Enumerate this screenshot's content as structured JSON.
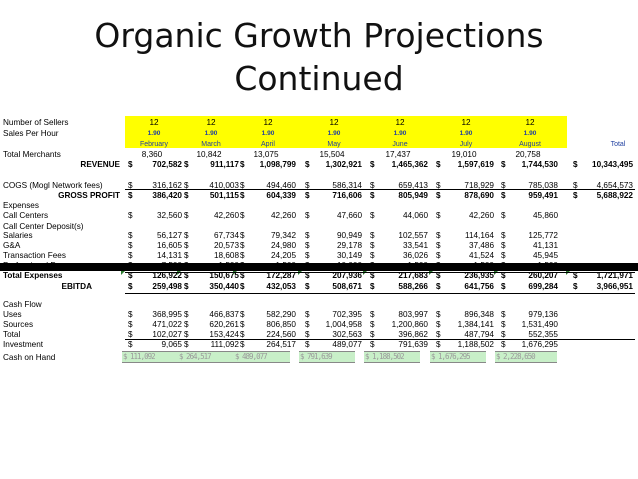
{
  "title": {
    "line1": "Organic Growth Projections",
    "line2": "Continued"
  },
  "rows": {
    "sellers": {
      "label": "Number of Sellers",
      "vals": [
        "12",
        "12",
        "12",
        "12",
        "12",
        "12",
        "12"
      ]
    },
    "sph": {
      "label": "Sales Per Hour",
      "vals": [
        "1.90",
        "1.90",
        "1.90",
        "1.90",
        "1.90",
        "1.90",
        "1.90"
      ]
    },
    "months": {
      "vals": [
        "February",
        "March",
        "April",
        "May",
        "June",
        "July",
        "August"
      ],
      "total": "Total"
    },
    "merchants": {
      "label": "Total Merchants",
      "vals": [
        "8,360",
        "10,842",
        "13,075",
        "15,504",
        "17,437",
        "19,010",
        "20,758"
      ]
    },
    "revenue": {
      "label": "REVENUE",
      "vals": [
        "702,582",
        "911,117",
        "1,098,799",
        "1,302,921",
        "1,465,362",
        "1,597,619",
        "1,744,530"
      ],
      "total": "10,343,495"
    },
    "cogs": {
      "label": "COGS (Mogl Network fees)",
      "vals": [
        "316,162",
        "410,003",
        "494,460",
        "586,314",
        "659,413",
        "718,929",
        "785,038"
      ],
      "total": "4,654,573"
    },
    "gross": {
      "label": "GROSS PROFIT",
      "vals": [
        "386,420",
        "501,115",
        "604,339",
        "716,606",
        "805,949",
        "878,690",
        "959,491"
      ],
      "total": "5,688,922"
    },
    "expenses": {
      "label": "Expenses"
    },
    "callcenters": {
      "label": "Call Centers",
      "vals": [
        "32,560",
        "42,260",
        "42,260",
        "47,660",
        "44,060",
        "42,260",
        "45,860"
      ]
    },
    "ccdeposit": {
      "label": "Call Center Deposit(s)"
    },
    "salaries": {
      "label": "Salaries",
      "vals": [
        "56,127",
        "67,734",
        "79,342",
        "90,949",
        "102,557",
        "114,164",
        "125,772"
      ]
    },
    "ga": {
      "label": "G&A",
      "vals": [
        "16,605",
        "20,573",
        "24,980",
        "29,178",
        "33,541",
        "37,486",
        "41,131"
      ]
    },
    "txfees": {
      "label": "Transaction Fees",
      "vals": [
        "14,131",
        "18,608",
        "24,205",
        "30,149",
        "36,026",
        "41,524",
        "45,945"
      ]
    },
    "proffees": {
      "label": "Professional Fees",
      "vals": [
        "7,500",
        "1,500",
        "1,500",
        "10,000",
        "1,500",
        "1,500",
        "1,500"
      ]
    },
    "totalexp": {
      "label": "Total Expenses",
      "vals": [
        "126,922",
        "150,675",
        "172,287",
        "207,936",
        "217,683",
        "236,935",
        "260,207"
      ],
      "total": "1,721,971"
    },
    "ebitda": {
      "label": "EBITDA",
      "vals": [
        "259,498",
        "350,440",
        "432,053",
        "508,671",
        "588,266",
        "641,756",
        "699,284"
      ],
      "total": "3,966,951"
    },
    "cashflow": {
      "label": "Cash Flow"
    },
    "uses": {
      "label": "Uses",
      "vals": [
        "368,995",
        "466,837",
        "582,290",
        "702,395",
        "803,997",
        "896,348",
        "979,136"
      ]
    },
    "sources": {
      "label": "Sources",
      "vals": [
        "471,022",
        "620,261",
        "806,850",
        "1,004,958",
        "1,200,860",
        "1,384,141",
        "1,531,490"
      ]
    },
    "total": {
      "label": "Total",
      "vals": [
        "102,027",
        "153,424",
        "224,560",
        "302,563",
        "396,862",
        "487,794",
        "552,355"
      ]
    },
    "investment": {
      "label": "Investment",
      "vals": [
        "9,065",
        "111,092",
        "264,517",
        "489,077",
        "791,639",
        "1,188,502",
        "1,676,295"
      ]
    },
    "cash": {
      "label": "Cash on Hand",
      "vals": [
        "$ 111,092",
        "$ 264,517",
        "$ 489,077",
        "$ 791,639",
        "$ 1,188,502",
        "$ 1,676,295",
        "$ 2,228,650"
      ]
    }
  },
  "currency": "$",
  "colors": {
    "highlight": "#ffff00",
    "month_text": "#1f3fa0",
    "cash_fill": "#c8efc8"
  }
}
